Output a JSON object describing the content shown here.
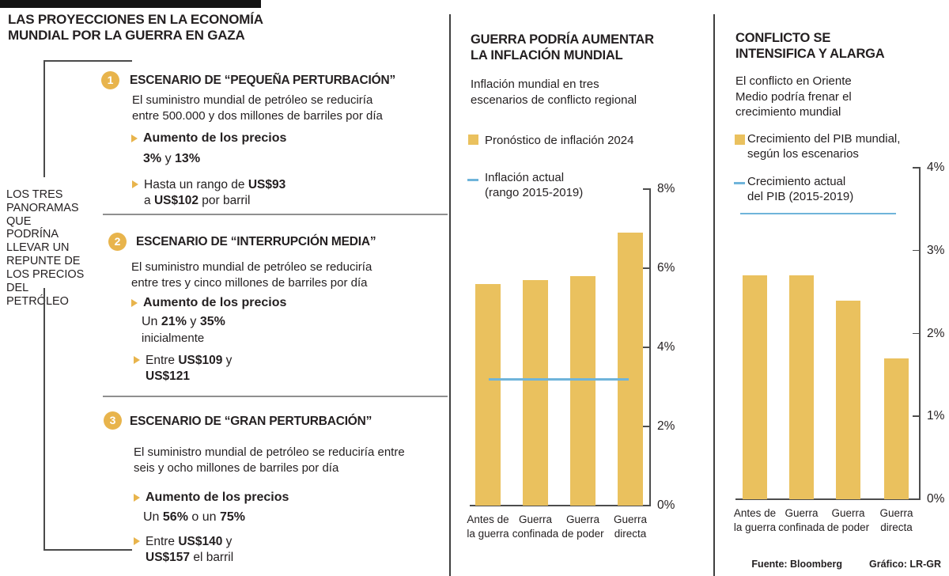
{
  "header": {
    "title": "LAS PROYECCIONES EN LA ECONOMÍA\nMUNDIAL POR LA GUERRA EN GAZA"
  },
  "colors": {
    "gold": "#eac15e",
    "gold_deep": "#e8b44c",
    "blue": "#6fb4da",
    "text": "#231f20"
  },
  "left_panel": {
    "bracket_label": "LOS TRES\nPANORAMAS\nQUE\nPODRÍNA\nLLEVAR UN\nREPUNTE DE\nLOS PRECIOS\nDEL\nPETRÓLEO",
    "scenarios": [
      {
        "number": "1",
        "heading": "ESCENARIO DE “PEQUEÑA PERTURBACIÓN”",
        "body": "El  suministro mundial de petróleo se reduciría\nentre 500.000 y dos millones de barriles por día",
        "price_title": "Aumento de los precios",
        "price_line1": [
          {
            "t": "3%",
            "b": true
          },
          {
            "t": " y ",
            "b": false
          },
          {
            "t": "13%",
            "b": true
          }
        ],
        "range_line1": [
          {
            "t": "Hasta un rango de ",
            "b": false
          },
          {
            "t": "US$93",
            "b": true
          }
        ],
        "range_line2": [
          {
            "t": "a ",
            "b": false
          },
          {
            "t": "US$102",
            "b": true
          },
          {
            "t": " por barril",
            "b": false
          }
        ]
      },
      {
        "number": "2",
        "heading": "ESCENARIO DE “INTERRUPCIÓN MEDIA”",
        "body": "El suministro mundial de petróleo se reduciría\nentre tres y cinco millones de barriles por día",
        "price_title": "Aumento de los precios",
        "price_line1": [
          {
            "t": "Un ",
            "b": false
          },
          {
            "t": "21%",
            "b": true
          },
          {
            "t": " y ",
            "b": false
          },
          {
            "t": "35%",
            "b": true
          }
        ],
        "price_line2": [
          {
            "t": "inicialmente",
            "b": false
          }
        ],
        "range_line1": [
          {
            "t": "Entre ",
            "b": false
          },
          {
            "t": "US$109",
            "b": true
          },
          {
            "t": " y",
            "b": false
          }
        ],
        "range_line2": [
          {
            "t": "US$121",
            "b": true
          }
        ]
      },
      {
        "number": "3",
        "heading": "ESCENARIO DE “GRAN PERTURBACIÓN”",
        "body": "El suministro mundial de petróleo se reduciría entre\nseis y ocho millones de barriles por día",
        "price_title": "Aumento de los precios",
        "price_line1": [
          {
            "t": "Un ",
            "b": false
          },
          {
            "t": "56%",
            "b": true
          },
          {
            "t": " o un ",
            "b": false
          },
          {
            "t": "75%",
            "b": true
          }
        ],
        "range_line1": [
          {
            "t": "Entre ",
            "b": false
          },
          {
            "t": "US$140",
            "b": true
          },
          {
            "t": " y",
            "b": false
          }
        ],
        "range_line2": [
          {
            "t": "US$157",
            "b": true
          },
          {
            "t": " el barril",
            "b": false
          }
        ]
      }
    ]
  },
  "chart_data": [
    {
      "type": "bar",
      "title": "GUERRA PODRÍA AUMENTAR\nLA INFLACIÓN MUNDIAL",
      "subtitle": "Inflación mundial en tres\nescenarios de conflicto regional",
      "legend": [
        {
          "type": "square",
          "color": "#eac15e",
          "label": "Pronóstico de inflación 2024"
        },
        {
          "type": "line",
          "color": "#6fb4da",
          "label": "Inflación actual\n(rango 2015-2019)"
        }
      ],
      "categories": [
        "Antes de\nla guerra",
        "Guerra\nconfinada",
        "Guerra\nde poder",
        "Guerra\ndirecta"
      ],
      "values": [
        5.6,
        5.7,
        5.8,
        6.9
      ],
      "bar_color": "#eac15e",
      "ref_line": {
        "value": 3.2,
        "color": "#6fb4da"
      },
      "ylim": [
        0,
        8
      ],
      "yticks": [
        {
          "v": 0,
          "label": "0%"
        },
        {
          "v": 2,
          "label": "2%"
        },
        {
          "v": 4,
          "label": "4%"
        },
        {
          "v": 6,
          "label": "6%"
        },
        {
          "v": 8,
          "label": "8%"
        }
      ],
      "legend_position": "top",
      "grid": false
    },
    {
      "type": "bar",
      "title": "CONFLICTO SE\nINTENSIFICA Y ALARGA",
      "subtitle": "El conflicto en Oriente\nMedio podría frenar el\ncrecimiento mundial",
      "legend": [
        {
          "type": "square",
          "color": "#eac15e",
          "label": "Crecimiento del PIB mundial,\nsegún los escenarios"
        },
        {
          "type": "line",
          "color": "#6fb4da",
          "label": "Crecimiento actual\ndel PIB (2015-2019)"
        }
      ],
      "categories": [
        "Antes de\nla guerra",
        "Guerra\nconfinada",
        "Guerra\nde poder",
        "Guerra\ndirecta"
      ],
      "values": [
        2.7,
        2.7,
        2.4,
        1.7
      ],
      "bar_color": "#eac15e",
      "ref_line": {
        "value": 3.45,
        "color": "#6fb4da"
      },
      "ylim": [
        0,
        4
      ],
      "yticks": [
        {
          "v": 0,
          "label": "0%"
        },
        {
          "v": 1,
          "label": "1%"
        },
        {
          "v": 2,
          "label": "2%"
        },
        {
          "v": 3,
          "label": "3%"
        },
        {
          "v": 4,
          "label": "4%"
        }
      ],
      "legend_position": "top",
      "grid": false
    }
  ],
  "footer": {
    "source": "Fuente: Bloomberg",
    "credit": "Gráfico: LR-GR"
  }
}
